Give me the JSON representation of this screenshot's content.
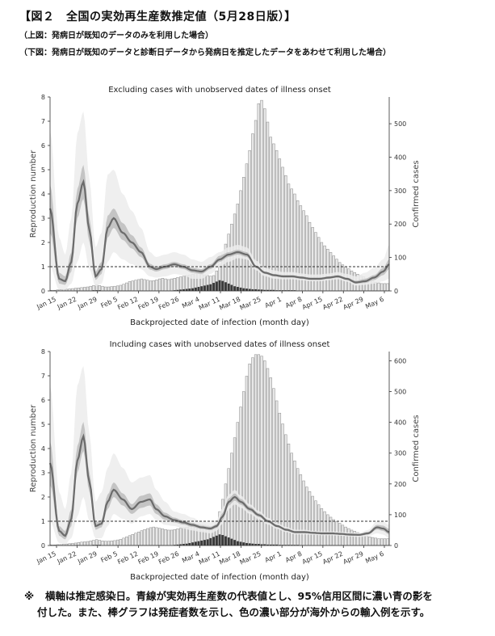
{
  "header": {
    "title": "【図２　全国の実効再生産数推定値（5月28日版）】",
    "subtitle_top": "（上図：発病日が既知のデータのみを利用した場合）",
    "subtitle_bottom": "（下図：発病日が既知のデータと診断日データから発病日を推定したデータをあわせて利用した場合）"
  },
  "footnote": {
    "mark": "※",
    "line1": "横軸は推定感染日。青線が実効再生産数の代表値とし、95%信用区間に濃い青の影を",
    "line2": "付した。また、棒グラフは発症者数を示し、色の濃い部分が海外からの輸入例を示す。"
  },
  "chart_data": [
    {
      "type": "bar",
      "title": "Excluding cases with unobserved dates of illness onset",
      "xlabel": "Backprojected date of infection (month day)",
      "ylabel_left": "Reproduction number",
      "ylabel_right": "Confirmed cases",
      "xtick_labels": [
        "Jan 15",
        "Jan 22",
        "Jan 29",
        "Feb 5",
        "Feb 12",
        "Feb 19",
        "Feb 26",
        "Mar 4",
        "Mar 11",
        "Mar 18",
        "Mar 25",
        "Apr 1",
        "Apr 8",
        "Apr 15",
        "Apr 22",
        "Apr 29",
        "May 6"
      ],
      "ylim_left": [
        0,
        8
      ],
      "ylim_right": [
        0,
        580
      ],
      "yticks_left": [
        0,
        1,
        2,
        3,
        4,
        5,
        6,
        7,
        8
      ],
      "yticks_right": [
        0,
        100,
        200,
        300,
        400,
        500
      ],
      "reference_line": 1,
      "x_day_range": [
        0,
        112
      ],
      "bars": {
        "name": "Confirmed cases",
        "values": [
          2,
          2,
          3,
          3,
          4,
          5,
          6,
          7,
          8,
          9,
          10,
          11,
          12,
          14,
          16,
          18,
          16,
          14,
          12,
          12,
          13,
          14,
          15,
          17,
          20,
          24,
          28,
          30,
          32,
          34,
          36,
          34,
          32,
          30,
          31,
          33,
          36,
          38,
          36,
          34,
          36,
          38,
          40,
          42,
          44,
          46,
          48,
          50,
          52,
          54,
          50,
          48,
          46,
          44,
          46,
          60,
          80,
          110,
          140,
          170,
          200,
          230,
          260,
          300,
          340,
          380,
          420,
          470,
          510,
          560,
          570,
          545,
          505,
          460,
          440,
          420,
          395,
          370,
          345,
          320,
          305,
          290,
          270,
          255,
          240,
          225,
          205,
          190,
          175,
          160,
          145,
          135,
          125,
          115,
          105,
          95,
          85,
          78,
          72,
          66,
          60,
          55,
          50,
          46,
          42,
          38,
          34,
          30,
          26,
          24,
          22,
          22,
          22
        ],
        "imported": [
          1,
          1,
          1,
          1,
          1,
          1,
          1,
          1,
          1,
          1,
          1,
          1,
          1,
          1,
          2,
          2,
          2,
          1,
          1,
          1,
          1,
          1,
          1,
          1,
          1,
          1,
          1,
          1,
          1,
          1,
          1,
          1,
          1,
          1,
          1,
          1,
          1,
          1,
          1,
          1,
          1,
          2,
          3,
          4,
          5,
          6,
          7,
          8,
          10,
          12,
          14,
          16,
          18,
          20,
          24,
          28,
          32,
          30,
          26,
          22,
          18,
          14,
          12,
          10,
          8,
          7,
          6,
          5,
          5,
          4,
          4,
          3,
          3,
          3,
          3,
          2,
          2,
          2,
          2,
          2,
          2,
          2,
          1,
          1,
          1,
          1,
          1,
          1,
          1,
          1,
          1,
          1,
          1,
          1,
          1,
          1,
          1,
          1,
          1,
          1,
          1,
          1,
          1,
          1,
          1,
          1,
          1,
          1,
          1,
          1,
          1,
          1,
          1
        ]
      },
      "rt": {
        "name": "Reproduction number",
        "days": [
          0,
          3,
          5,
          7,
          9,
          11,
          13,
          15,
          17,
          19,
          21,
          24,
          27,
          30,
          33,
          35,
          38,
          41,
          44,
          47,
          50,
          53,
          56,
          59,
          62,
          65,
          68,
          71,
          74,
          77,
          80,
          83,
          86,
          89,
          92,
          95,
          98,
          101,
          104,
          107,
          110,
          112
        ],
        "median": [
          3.4,
          0.5,
          0.4,
          1.2,
          3.6,
          4.5,
          2.5,
          0.6,
          0.9,
          2.6,
          3.0,
          2.4,
          2.0,
          1.6,
          1.0,
          0.9,
          1.0,
          1.1,
          1.0,
          0.85,
          0.8,
          1.0,
          1.3,
          1.5,
          1.6,
          1.5,
          1.0,
          0.75,
          0.65,
          0.6,
          0.6,
          0.55,
          0.5,
          0.5,
          0.55,
          0.6,
          0.5,
          0.35,
          0.4,
          0.55,
          0.8,
          1.1
        ],
        "ci95_low": [
          2.4,
          0.3,
          0.25,
          0.8,
          3.0,
          3.8,
          2.0,
          0.45,
          0.7,
          2.2,
          2.6,
          2.1,
          1.75,
          1.4,
          0.88,
          0.8,
          0.9,
          1.0,
          0.9,
          0.75,
          0.7,
          0.9,
          1.2,
          1.4,
          1.5,
          1.4,
          0.95,
          0.7,
          0.6,
          0.55,
          0.55,
          0.5,
          0.46,
          0.46,
          0.5,
          0.55,
          0.45,
          0.3,
          0.33,
          0.45,
          0.65,
          0.9
        ],
        "ci95_high": [
          4.4,
          0.75,
          0.6,
          1.6,
          4.2,
          5.2,
          3.0,
          0.8,
          1.2,
          3.1,
          3.4,
          2.8,
          2.3,
          1.8,
          1.12,
          1.0,
          1.1,
          1.2,
          1.1,
          0.95,
          0.9,
          1.1,
          1.45,
          1.6,
          1.7,
          1.6,
          1.05,
          0.8,
          0.7,
          0.65,
          0.65,
          0.6,
          0.55,
          0.55,
          0.6,
          0.65,
          0.55,
          0.42,
          0.5,
          0.65,
          0.95,
          1.3
        ],
        "outer_low": [
          1.0,
          0.05,
          0.05,
          0.3,
          1.2,
          2.0,
          0.9,
          0.2,
          0.3,
          1.2,
          1.6,
          1.3,
          1.1,
          0.9,
          0.6,
          0.55,
          0.6,
          0.7,
          0.65,
          0.5,
          0.5,
          0.7,
          1.0,
          1.2,
          1.35,
          1.3,
          0.85,
          0.6,
          0.5,
          0.48,
          0.48,
          0.44,
          0.4,
          0.4,
          0.44,
          0.48,
          0.38,
          0.22,
          0.25,
          0.3,
          0.4,
          0.5
        ],
        "outer_high": [
          6.6,
          2.2,
          1.5,
          3.0,
          6.5,
          7.4,
          4.6,
          1.8,
          2.4,
          4.8,
          5.0,
          4.0,
          3.3,
          2.6,
          1.6,
          1.4,
          1.5,
          1.6,
          1.5,
          1.3,
          1.2,
          1.4,
          1.6,
          1.8,
          1.9,
          1.8,
          1.25,
          0.95,
          0.85,
          0.78,
          0.78,
          0.72,
          0.68,
          0.68,
          0.72,
          0.78,
          0.7,
          0.6,
          0.75,
          0.95,
          1.3,
          1.9
        ]
      }
    },
    {
      "type": "bar",
      "title": "Including cases with unobserved dates of illness onset",
      "xlabel": "Backprojected date of infection (month day)",
      "ylabel_left": "Reproduction number",
      "ylabel_right": "Confirmed cases",
      "xtick_labels": [
        "Jan 15",
        "Jan 22",
        "Jan 29",
        "Feb 5",
        "Feb 12",
        "Feb 19",
        "Feb 26",
        "Mar 4",
        "Mar 11",
        "Mar 18",
        "Mar 25",
        "Apr 1",
        "Apr 8",
        "Apr 15",
        "Apr 22",
        "Apr 29",
        "May 6"
      ],
      "ylim_left": [
        0,
        8
      ],
      "ylim_right": [
        0,
        630
      ],
      "yticks_left": [
        0,
        1,
        2,
        3,
        4,
        5,
        6,
        7,
        8
      ],
      "yticks_right": [
        0,
        100,
        200,
        300,
        400,
        500,
        600
      ],
      "reference_line": 1,
      "x_day_range": [
        0,
        112
      ],
      "bars": {
        "name": "Confirmed cases",
        "values": [
          2,
          2,
          3,
          3,
          4,
          5,
          6,
          7,
          8,
          10,
          11,
          12,
          13,
          15,
          17,
          19,
          17,
          15,
          14,
          14,
          15,
          16,
          18,
          20,
          24,
          28,
          32,
          36,
          40,
          44,
          48,
          52,
          55,
          58,
          60,
          58,
          56,
          54,
          52,
          50,
          50,
          52,
          54,
          56,
          58,
          60,
          62,
          64,
          66,
          70,
          68,
          66,
          64,
          62,
          64,
          80,
          110,
          150,
          200,
          250,
          300,
          350,
          400,
          450,
          500,
          550,
          590,
          610,
          620,
          620,
          615,
          600,
          575,
          545,
          510,
          470,
          430,
          395,
          360,
          330,
          300,
          275,
          250,
          230,
          210,
          190,
          175,
          160,
          145,
          132,
          120,
          110,
          100,
          92,
          84,
          78,
          72,
          66,
          60,
          55,
          50,
          46,
          42,
          38,
          34,
          31,
          28,
          26,
          24,
          22,
          22,
          22,
          22
        ],
        "imported": [
          1,
          1,
          1,
          1,
          1,
          1,
          1,
          1,
          1,
          1,
          1,
          1,
          1,
          1,
          2,
          2,
          2,
          1,
          1,
          1,
          1,
          1,
          1,
          1,
          1,
          1,
          1,
          1,
          1,
          1,
          1,
          1,
          1,
          1,
          1,
          1,
          1,
          1,
          1,
          1,
          1,
          2,
          3,
          4,
          5,
          6,
          8,
          10,
          12,
          14,
          16,
          18,
          20,
          24,
          28,
          32,
          36,
          34,
          30,
          26,
          22,
          18,
          14,
          12,
          10,
          8,
          7,
          6,
          5,
          5,
          4,
          4,
          3,
          3,
          3,
          3,
          2,
          2,
          2,
          2,
          2,
          2,
          2,
          1,
          1,
          1,
          1,
          1,
          1,
          1,
          1,
          1,
          1,
          1,
          1,
          1,
          1,
          1,
          1,
          1,
          1,
          1,
          1,
          1,
          1,
          1,
          1,
          1,
          1,
          1,
          1,
          1,
          1
        ]
      },
      "rt": {
        "name": "Reproduction number",
        "days": [
          0,
          3,
          5,
          7,
          9,
          11,
          13,
          15,
          17,
          19,
          21,
          24,
          27,
          30,
          33,
          35,
          38,
          41,
          44,
          47,
          50,
          53,
          55,
          57,
          59,
          61,
          63,
          66,
          69,
          72,
          75,
          78,
          81,
          84,
          87,
          90,
          93,
          96,
          99,
          102,
          105,
          108,
          110,
          112
        ],
        "median": [
          3.4,
          0.6,
          0.4,
          1.1,
          3.5,
          4.5,
          2.6,
          0.8,
          0.9,
          1.8,
          2.3,
          1.9,
          1.5,
          1.8,
          1.9,
          1.5,
          1.2,
          1.05,
          0.95,
          0.85,
          0.75,
          0.7,
          0.8,
          1.2,
          1.8,
          2.0,
          1.8,
          1.5,
          1.25,
          1.0,
          0.8,
          0.65,
          0.55,
          0.55,
          0.52,
          0.5,
          0.5,
          0.48,
          0.45,
          0.44,
          0.5,
          0.75,
          0.7,
          0.55
        ],
        "ci95_low": [
          2.5,
          0.4,
          0.25,
          0.8,
          3.0,
          3.9,
          2.2,
          0.65,
          0.75,
          1.5,
          2.0,
          1.65,
          1.3,
          1.55,
          1.65,
          1.3,
          1.05,
          0.95,
          0.86,
          0.77,
          0.68,
          0.63,
          0.72,
          1.05,
          1.65,
          1.85,
          1.68,
          1.4,
          1.17,
          0.94,
          0.75,
          0.6,
          0.51,
          0.51,
          0.48,
          0.46,
          0.46,
          0.44,
          0.41,
          0.4,
          0.45,
          0.66,
          0.6,
          0.45
        ],
        "ci95_high": [
          4.3,
          0.8,
          0.6,
          1.5,
          4.1,
          5.1,
          3.0,
          0.95,
          1.05,
          2.1,
          2.6,
          2.15,
          1.7,
          2.05,
          2.15,
          1.7,
          1.35,
          1.15,
          1.04,
          0.93,
          0.82,
          0.77,
          0.88,
          1.35,
          1.95,
          2.15,
          1.92,
          1.6,
          1.33,
          1.06,
          0.85,
          0.7,
          0.6,
          0.6,
          0.56,
          0.54,
          0.54,
          0.52,
          0.49,
          0.48,
          0.56,
          0.85,
          0.82,
          0.68
        ],
        "outer_low": [
          1.0,
          0.1,
          0.05,
          0.3,
          1.2,
          2.0,
          1.0,
          0.3,
          0.3,
          0.8,
          1.3,
          1.1,
          0.9,
          1.2,
          1.3,
          1.05,
          0.85,
          0.8,
          0.7,
          0.62,
          0.55,
          0.5,
          0.6,
          0.9,
          1.5,
          1.7,
          1.55,
          1.3,
          1.08,
          0.86,
          0.68,
          0.55,
          0.46,
          0.46,
          0.44,
          0.42,
          0.42,
          0.4,
          0.37,
          0.35,
          0.38,
          0.5,
          0.45,
          0.3
        ],
        "outer_high": [
          6.6,
          2.2,
          1.5,
          3.0,
          6.6,
          7.4,
          4.6,
          1.8,
          2.2,
          3.2,
          3.8,
          3.2,
          2.6,
          2.8,
          2.9,
          2.3,
          1.8,
          1.4,
          1.3,
          1.15,
          1.0,
          0.95,
          1.05,
          1.55,
          2.1,
          2.3,
          2.05,
          1.7,
          1.42,
          1.14,
          0.92,
          0.76,
          0.65,
          0.65,
          0.6,
          0.58,
          0.58,
          0.56,
          0.53,
          0.52,
          0.64,
          1.0,
          0.98,
          0.85
        ]
      }
    }
  ]
}
